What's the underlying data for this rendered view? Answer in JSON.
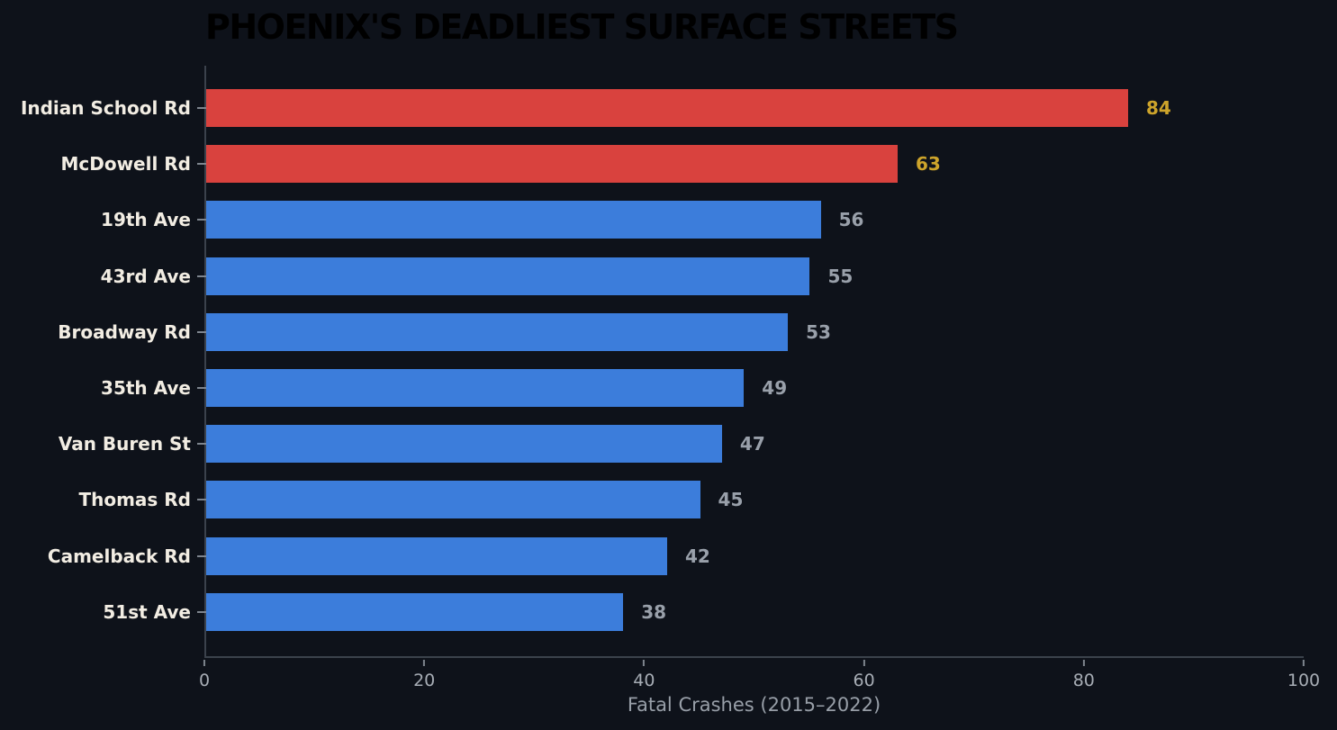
{
  "title": "PHOENIX'S DEADLIEST SURFACE STREETS",
  "colors": {
    "background": "#0e121a",
    "bar_default": "#3c7ddb",
    "bar_highlight": "#d9423e",
    "value_default": "#99a0aa",
    "value_highlight": "#cda42b",
    "category_label": "#f2ede3",
    "tick_label": "#a7adb5",
    "axis_label": "#989fa8",
    "spine": "#3b424c",
    "tick_mark": "#7e858e",
    "title": "#000000"
  },
  "chart_data": {
    "type": "bar",
    "orientation": "horizontal",
    "title": "PHOENIX'S DEADLIEST SURFACE STREETS",
    "xlabel": "Fatal Crashes (2015–2022)",
    "ylabel": "",
    "xlim": [
      0,
      100
    ],
    "xticks": [
      0,
      20,
      40,
      60,
      80,
      100
    ],
    "grid": false,
    "legend": false,
    "categories": [
      "Indian School Rd",
      "McDowell Rd",
      "19th Ave",
      "43rd Ave",
      "Broadway Rd",
      "35th Ave",
      "Van Buren St",
      "Thomas Rd",
      "Camelback Rd",
      "51st Ave"
    ],
    "values": [
      84,
      63,
      56,
      55,
      53,
      49,
      47,
      45,
      42,
      38
    ],
    "highlighted": [
      "Indian School Rd",
      "McDowell Rd"
    ]
  }
}
